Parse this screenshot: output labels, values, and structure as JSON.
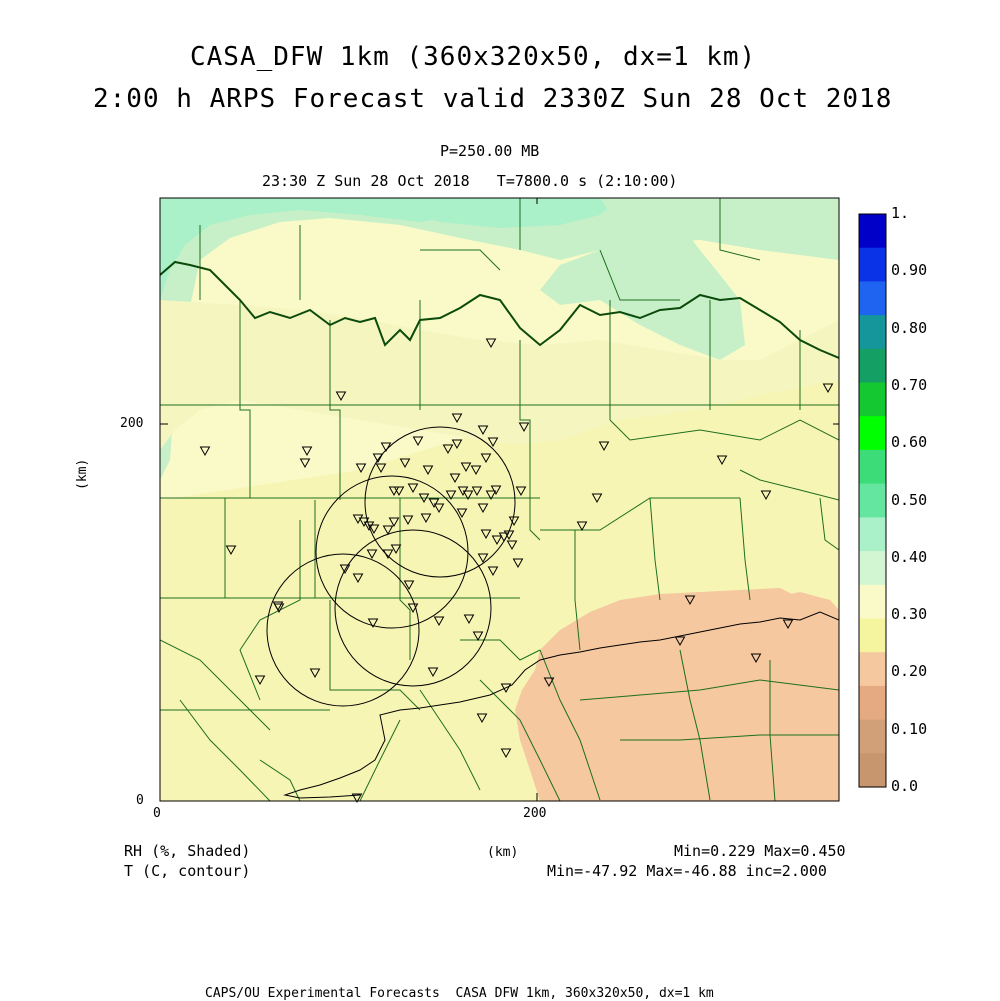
{
  "header": {
    "title_line1": "CASA_DFW 1km (360x320x50, dx=1 km)",
    "title_line2": "2:00 h ARPS Forecast valid 2330Z Sun 28 Oct 2018",
    "pressure": "P=250.00 MB",
    "time_line": "23:30 Z Sun 28 Oct 2018   T=7800.0 s (2:10:00)"
  },
  "axes": {
    "x_ticks": [
      "0",
      "200"
    ],
    "y_ticks": [
      "0",
      "200"
    ],
    "x_label": "(km)",
    "y_label": "(km)"
  },
  "colorbar": {
    "labels": [
      "1.",
      "0.90",
      "0.80",
      "0.70",
      "0.60",
      "0.50",
      "0.40",
      "0.30",
      "0.20",
      "0.10",
      "0.0"
    ],
    "colors": [
      "#0000c8",
      "#0a32e6",
      "#1e64f0",
      "#14969b",
      "#14a064",
      "#14c832",
      "#00ff00",
      "#3cdc78",
      "#64e6a0",
      "#aaf0c8",
      "#d2f5d2",
      "#fafac8",
      "#f5f5a0",
      "#f5c8a0",
      "#e6aa82",
      "#d2a078",
      "#c8966e"
    ]
  },
  "legend": {
    "shaded_label": "RH (%, Shaded)",
    "contour_label": "T (C, contour)",
    "shaded_stats": "Min=0.229 Max=0.450",
    "contour_stats": "Min=-47.92 Max=-46.88 inc=2.000",
    "x_unit": "(km)"
  },
  "footer": {
    "text": "CAPS/OU Experimental Forecasts  CASA DFW 1km, 360x320x50, dx=1 km"
  },
  "map": {
    "field": "RH",
    "contour_field": "T",
    "domain_km": [
      360,
      320
    ],
    "radar_count": 4
  }
}
